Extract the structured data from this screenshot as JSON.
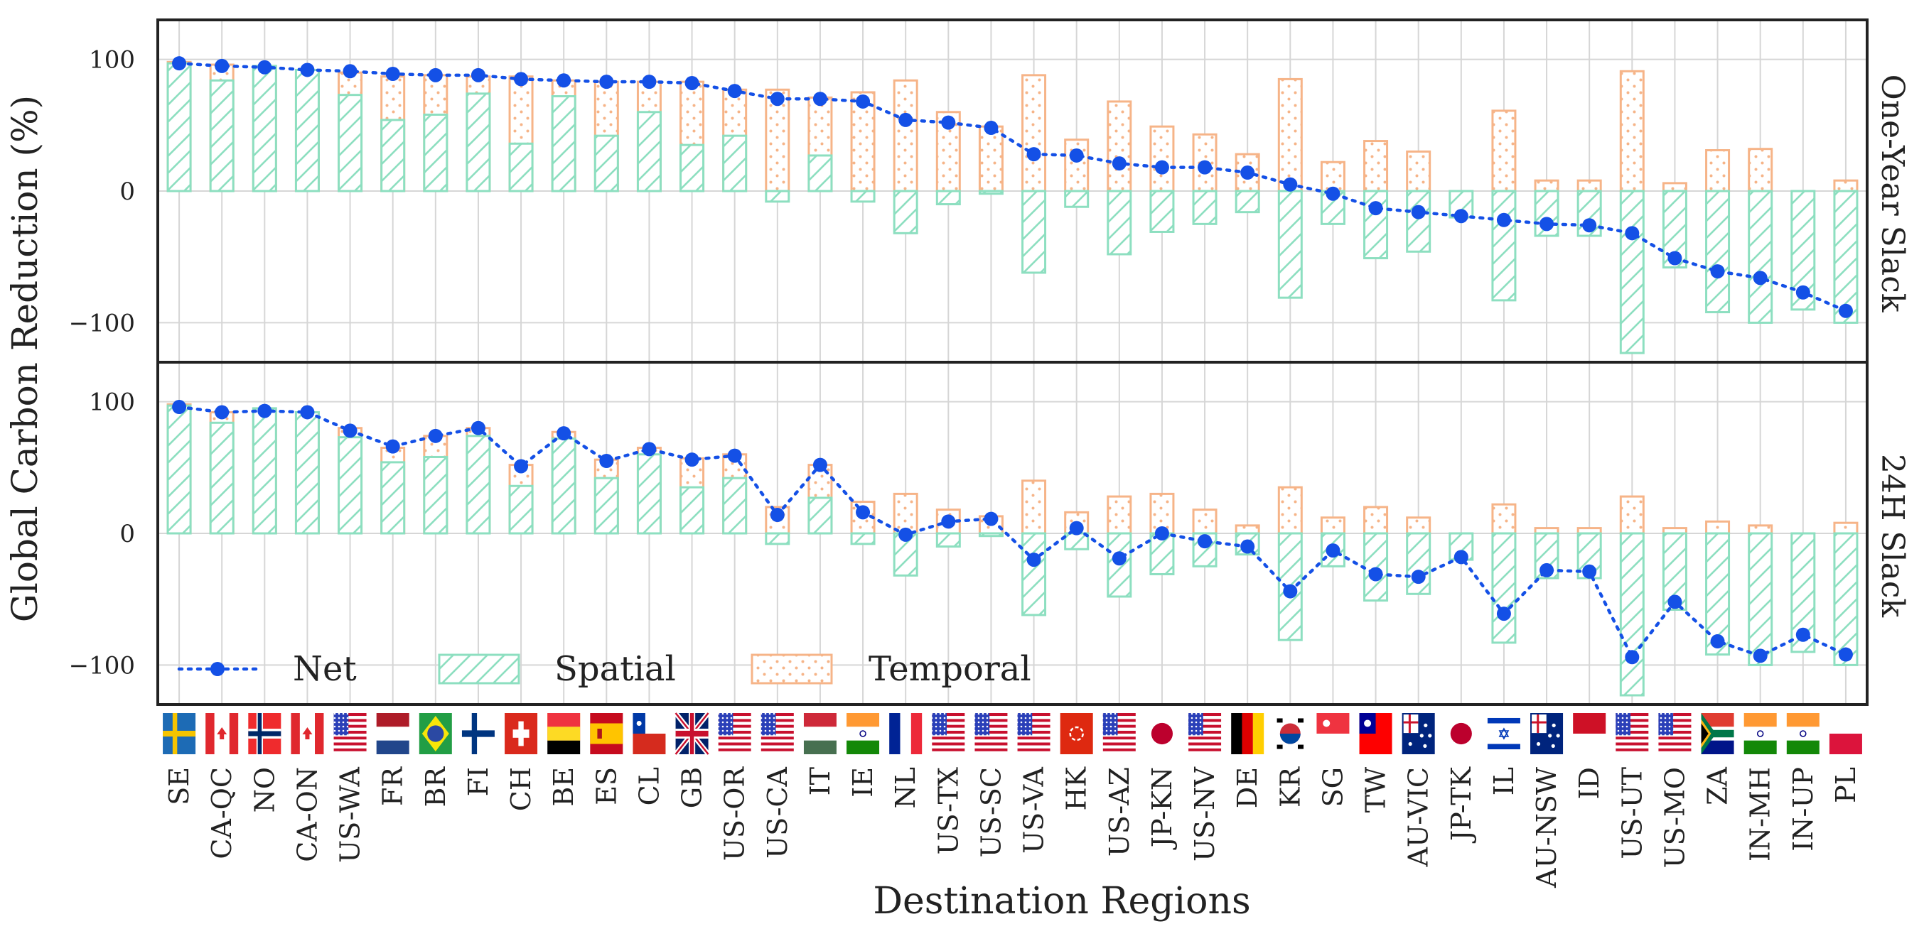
{
  "chart_data": {
    "type": "bar",
    "ylabel": "Global Carbon Reduction (%)",
    "xlabel": "Destination Regions",
    "ylim": [
      -130,
      130
    ],
    "yticks": [
      -100,
      0,
      100
    ],
    "ytick_labels": [
      "−100",
      "0",
      "100"
    ],
    "grid": true,
    "legend": {
      "placement": "bottom-left of lower panel",
      "entries": [
        "Net",
        "Spatial",
        "Temporal"
      ]
    },
    "colors": {
      "net": "#1450e6",
      "spatial": "#8ddfc0",
      "temporal": "#f6b488",
      "grid": "#d6d6d6",
      "frame": "#222222"
    },
    "categories": [
      "SE",
      "CA-QC",
      "NO",
      "CA-ON",
      "US-WA",
      "FR",
      "BR",
      "FI",
      "CH",
      "BE",
      "ES",
      "CL",
      "GB",
      "US-OR",
      "US-CA",
      "IT",
      "IE",
      "NL",
      "US-TX",
      "US-SC",
      "US-VA",
      "HK",
      "US-AZ",
      "JP-KN",
      "US-NV",
      "DE",
      "KR",
      "SG",
      "TW",
      "AU-VIC",
      "JP-TK",
      "IL",
      "AU-NSW",
      "ID",
      "US-UT",
      "US-MO",
      "ZA",
      "IN-MH",
      "IN-UP",
      "PL"
    ],
    "flags": [
      "se",
      "ca",
      "no",
      "ca",
      "us",
      "nl",
      "br",
      "fi",
      "ch",
      "be",
      "es",
      "cl",
      "gb",
      "us",
      "us",
      "hu",
      "in",
      "fr",
      "us",
      "us",
      "us",
      "hk",
      "us",
      "jp",
      "us",
      "de",
      "kr",
      "sg",
      "tw",
      "au",
      "jp",
      "il",
      "au",
      "id",
      "us",
      "us",
      "za",
      "in",
      "in",
      "pl"
    ],
    "panels": [
      {
        "name": "One-Year Slack",
        "series": [
          {
            "name": "Spatial",
            "values": [
              97,
              84,
              95,
              92,
              73,
              54,
              58,
              74,
              36,
              72,
              42,
              60,
              35,
              42,
              -8,
              27,
              -8,
              -32,
              -10,
              -2,
              -62,
              -12,
              -48,
              -31,
              -25,
              -16,
              -81,
              -25,
              -51,
              -46,
              -20,
              -83,
              -34,
              -34,
              -123,
              -58,
              -92,
              -100,
              -90,
              -100
            ]
          },
          {
            "name": "Temporal",
            "values": [
              98,
              96,
              93,
              90,
              90,
              87,
              88,
              87,
              87,
              84,
              83,
              83,
              83,
              77,
              77,
              71,
              75,
              84,
              60,
              49,
              88,
              39,
              68,
              49,
              43,
              28,
              85,
              22,
              38,
              30,
              0,
              61,
              8,
              8,
              91,
              6,
              31,
              32,
              0,
              8
            ]
          },
          {
            "name": "Net",
            "values": [
              97,
              95,
              94,
              92,
              91,
              89,
              88,
              88,
              85,
              84,
              83,
              83,
              82,
              76,
              70,
              70,
              68,
              54,
              52,
              48,
              28,
              27,
              21,
              18,
              18,
              14,
              5,
              -2,
              -13,
              -16,
              -19,
              -22,
              -25,
              -26,
              -32,
              -51,
              -61,
              -66,
              -77,
              -91
            ]
          }
        ]
      },
      {
        "name": "24H Slack",
        "series": [
          {
            "name": "Spatial",
            "values": [
              97,
              84,
              95,
              92,
              73,
              54,
              58,
              74,
              36,
              72,
              42,
              60,
              35,
              42,
              -8,
              27,
              -8,
              -32,
              -10,
              -2,
              -62,
              -12,
              -48,
              -31,
              -25,
              -16,
              -81,
              -25,
              -51,
              -46,
              -20,
              -83,
              -34,
              -34,
              -123,
              -58,
              -92,
              -100,
              -90,
              -100
            ]
          },
          {
            "name": "Temporal",
            "values": [
              98,
              92,
              93,
              91,
              80,
              65,
              74,
              80,
              52,
              77,
              56,
              65,
              57,
              60,
              20,
              52,
              24,
              30,
              18,
              13,
              40,
              16,
              28,
              30,
              18,
              6,
              35,
              12,
              20,
              12,
              0,
              22,
              4,
              4,
              28,
              4,
              9,
              6,
              0,
              8
            ]
          },
          {
            "name": "Net",
            "values": [
              96,
              92,
              93,
              92,
              78,
              66,
              74,
              80,
              51,
              76,
              55,
              64,
              56,
              59,
              14,
              52,
              16,
              -1,
              9,
              11,
              -20,
              4,
              -19,
              0,
              -6,
              -10,
              -44,
              -13,
              -31,
              -33,
              -18,
              -61,
              -28,
              -29,
              -94,
              -52,
              -82,
              -93,
              -77,
              -92
            ]
          }
        ]
      }
    ]
  }
}
